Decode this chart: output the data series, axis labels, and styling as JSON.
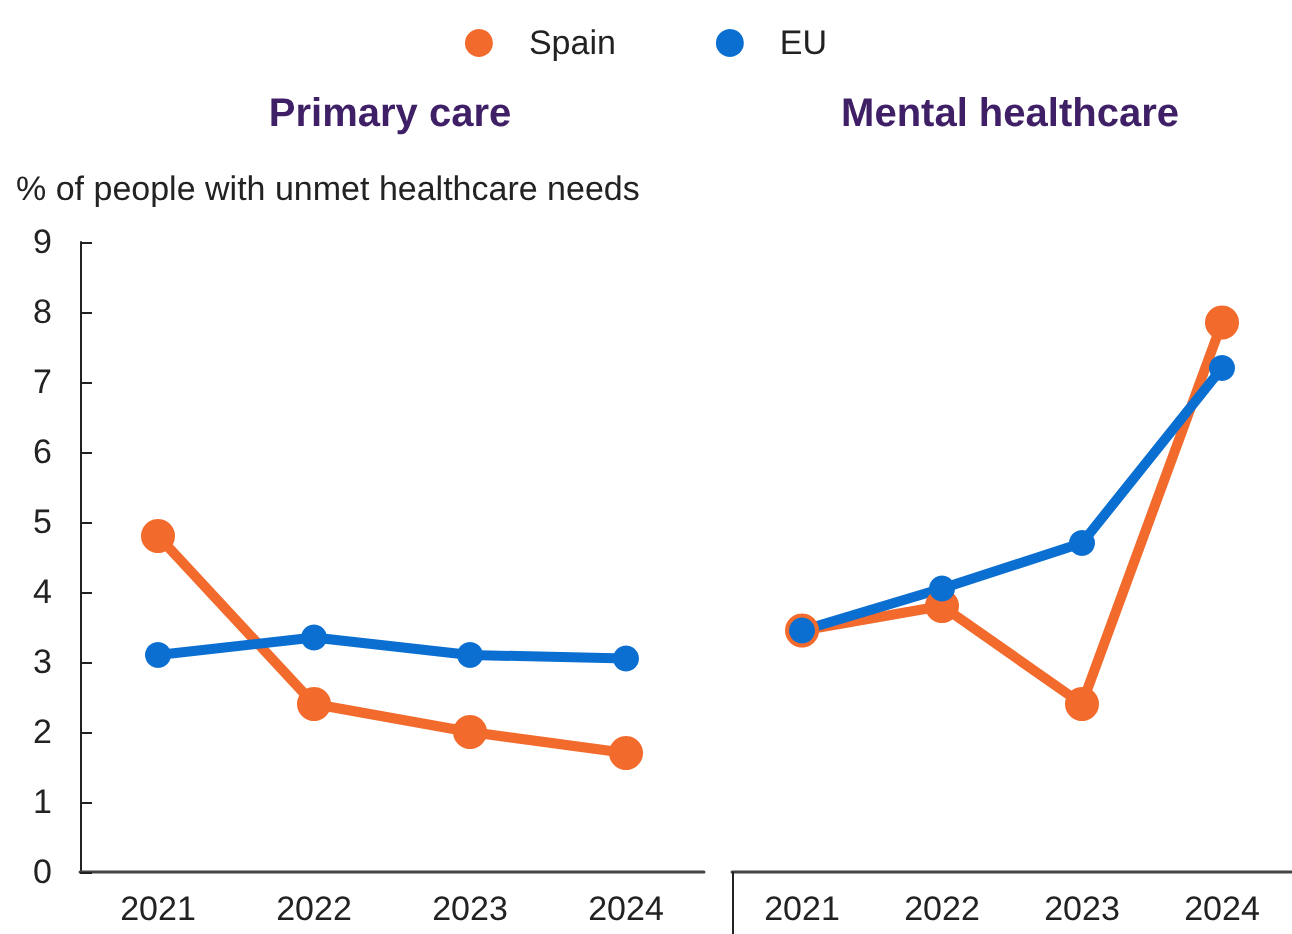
{
  "chart_data": [
    {
      "type": "line",
      "title": "Primary care",
      "ylabel": "% of people with unmet healthcare needs",
      "categories": [
        "2021",
        "2022",
        "2023",
        "2024"
      ],
      "series": [
        {
          "name": "Spain",
          "color": "#f26a2c",
          "values": [
            4.8,
            2.4,
            2.0,
            1.7
          ]
        },
        {
          "name": "EU",
          "color": "#0a6fd1",
          "values": [
            3.1,
            3.35,
            3.1,
            3.05
          ]
        }
      ],
      "ylim": [
        0,
        9
      ],
      "yticks": [
        0,
        1,
        2,
        3,
        4,
        5,
        6,
        7,
        8,
        9
      ],
      "grid": false,
      "legend": "top",
      "marker": "circle",
      "line_style": "solid"
    },
    {
      "type": "line",
      "title": "Mental healthcare",
      "categories": [
        "2021",
        "2022",
        "2023",
        "2024"
      ],
      "series": [
        {
          "color": "#f26a2c",
          "values": [
            3.45,
            3.8,
            2.4,
            7.85
          ]
        },
        {
          "color": "#0a6fd1",
          "values": [
            3.45,
            4.05,
            4.7,
            7.2
          ]
        }
      ],
      "ylim": [
        0,
        9
      ],
      "yticks": [
        0,
        1,
        2,
        3,
        4,
        5,
        6,
        7,
        8,
        9
      ],
      "grid": false,
      "legend": false,
      "marker": "circle",
      "line_style": "solid",
      "tick_labels": "x"
    }
  ]
}
